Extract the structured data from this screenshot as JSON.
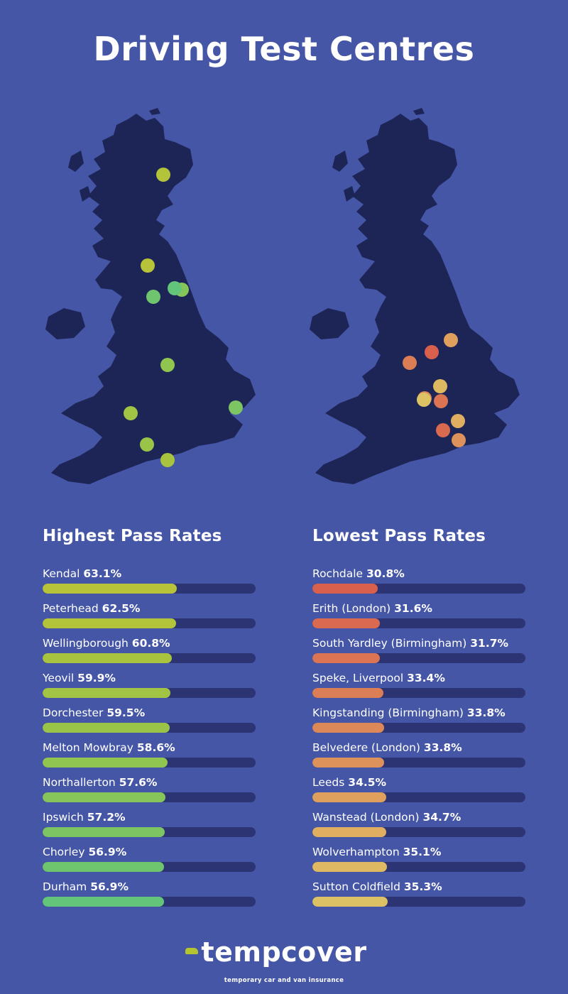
{
  "title": "Driving Test Centres",
  "colors": {
    "background": "#4556a6",
    "map": "#1d2456",
    "track": "#2c3474"
  },
  "logo": {
    "name": "tempcover",
    "tagline": "temporary car and van insurance"
  },
  "chart_data": [
    {
      "type": "bar",
      "title": "Highest Pass Rates",
      "unit": "%",
      "xlim": [
        0,
        100
      ],
      "categories": [
        "Kendal",
        "Peterhead",
        "Wellingborough",
        "Yeovil",
        "Dorchester",
        "Melton Mowbray",
        "Northallerton",
        "Ipswich",
        "Chorley",
        "Durham"
      ],
      "values": [
        63.1,
        62.5,
        60.8,
        59.9,
        59.5,
        58.6,
        57.6,
        57.2,
        56.9,
        56.9
      ],
      "colors": [
        "#b7c338",
        "#b3c33a",
        "#a8c43f",
        "#a1c444",
        "#9ac448",
        "#90c550",
        "#86c559",
        "#7cc562",
        "#6fc56d",
        "#63c579"
      ]
    },
    {
      "type": "bar",
      "title": "Lowest Pass Rates",
      "unit": "%",
      "xlim": [
        0,
        100
      ],
      "categories": [
        "Rochdale",
        "Erith (London)",
        "South Yardley (Birmingham)",
        "Speke, Liverpool",
        "Kingstanding (Birmingham)",
        "Belvedere (London)",
        "Leeds",
        "Wanstead (London)",
        "Wolverhampton",
        "Sutton Coldfield"
      ],
      "values": [
        30.8,
        31.6,
        31.7,
        33.4,
        33.8,
        33.8,
        34.5,
        34.7,
        35.1,
        35.3
      ],
      "colors": [
        "#d9604c",
        "#da6a4f",
        "#db7452",
        "#dc7e55",
        "#dd8858",
        "#de925b",
        "#dfa05e",
        "#dfae60",
        "#deb962",
        "#dcc264"
      ]
    }
  ]
}
